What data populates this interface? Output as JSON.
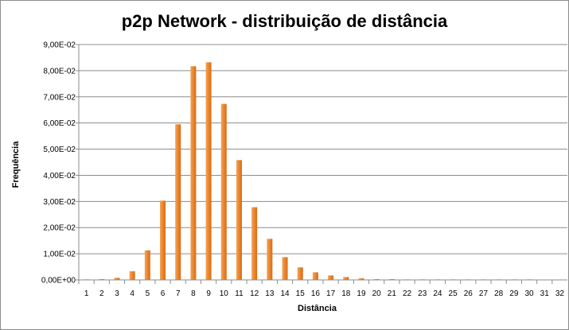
{
  "chart_data": {
    "type": "bar",
    "title": "p2p Network - distribuição de distância",
    "xlabel": "Distância",
    "ylabel": "Frequência",
    "ylim": [
      0,
      0.09
    ],
    "y_ticks": [
      "0,00E+00",
      "1,00E-02",
      "2,00E-02",
      "3,00E-02",
      "4,00E-02",
      "5,00E-02",
      "6,00E-02",
      "7,00E-02",
      "8,00E-02",
      "9,00E-02"
    ],
    "grid": true,
    "legend": "none",
    "categories": [
      "1",
      "2",
      "3",
      "4",
      "5",
      "6",
      "7",
      "8",
      "9",
      "10",
      "11",
      "12",
      "13",
      "14",
      "15",
      "16",
      "17",
      "18",
      "19",
      "20",
      "21",
      "22",
      "23",
      "24",
      "25",
      "26",
      "27",
      "28",
      "29",
      "30",
      "31",
      "32"
    ],
    "values": [
      0.0002,
      0.0003,
      0.0008,
      0.0033,
      0.0113,
      0.0303,
      0.0595,
      0.0817,
      0.0832,
      0.0673,
      0.0458,
      0.0278,
      0.0157,
      0.0087,
      0.0048,
      0.0029,
      0.0017,
      0.0011,
      0.0006,
      0.0003,
      0.0003,
      0.0002,
      0.0002,
      0.0002,
      0.0002,
      0.0002,
      0.0002,
      0.0002,
      0.0002,
      0.0002,
      0.0,
      0.0
    ],
    "colors": {
      "bar_light": "#f7a252",
      "bar_dark": "#d96b12",
      "grid": "#8c8c8c",
      "axis": "#8c8c8c"
    }
  }
}
